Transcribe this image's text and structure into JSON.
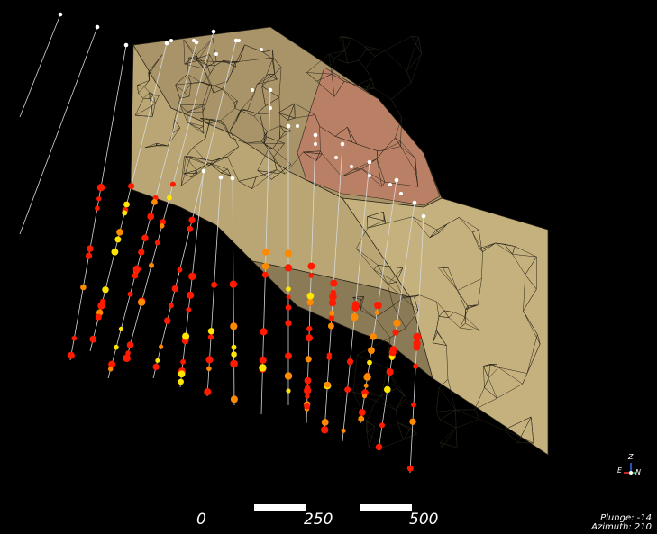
{
  "scale_bar": {
    "labels": [
      "0",
      "250",
      "500"
    ]
  },
  "view": {
    "plunge_label": "Plunge: -14",
    "azimuth_label": "Azimuth: 210"
  },
  "axes": {
    "z": "Z",
    "e": "E",
    "n": "N"
  },
  "colors": {
    "background": "#000000",
    "block_face": "#c4b17e",
    "block_top": "#b5a273",
    "ore_zone": "#c08468",
    "mesh_lines": "#2a2418",
    "collar": "#ffffff",
    "drillhole_trace": "#d8d8d8",
    "assay_high": "#ff1a00",
    "assay_mid": "#ff8a00",
    "assay_low": "#ffe600"
  }
}
